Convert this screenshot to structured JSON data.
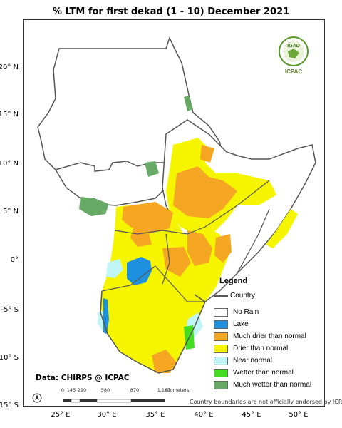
{
  "title": "% LTM  for    first dekad (1 - 10) December 2021",
  "lat_labels": [
    "20° N",
    "15° N",
    "10° N",
    "5° N",
    "0°",
    "-5° S",
    "-10° S",
    "-15° S"
  ],
  "lon_labels": [
    "25° E",
    "30° E",
    "35° E",
    "40° E",
    "45° E",
    "50° E"
  ],
  "legend": {
    "title": "Legend",
    "country_label": "Country",
    "items": [
      {
        "label": "No Rain",
        "color": "#ffffff"
      },
      {
        "label": "Lake",
        "color": "#1e90e0"
      },
      {
        "label": "Much drier than normal",
        "color": "#f5a623"
      },
      {
        "label": "Drier than normal",
        "color": "#f5f500"
      },
      {
        "label": "Near normal",
        "color": "#bff5f5"
      },
      {
        "label": "Wetter than normal",
        "color": "#44dd22"
      },
      {
        "label": "Much wetter than normal",
        "color": "#66aa66"
      }
    ]
  },
  "data_source": "Data: CHIRPS @ ICPAC",
  "disclaimer": "Country boundaries are not officially endorsed by ICPAC",
  "scale": {
    "ticks": [
      "0",
      "145",
      "290",
      "580",
      "870",
      "1,160"
    ],
    "unit": "Kilometers"
  },
  "logo": {
    "org": "ICPAC",
    "badge": "IGAD"
  }
}
